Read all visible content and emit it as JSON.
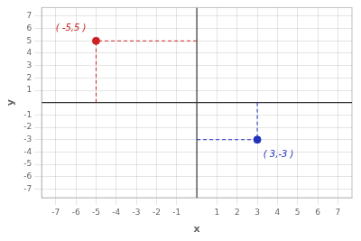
{
  "chart_data": {
    "type": "scatter",
    "xlabel": "x",
    "ylabel": "y",
    "xlim": [
      -7.7,
      7.7
    ],
    "ylim": [
      -7.7,
      7.7
    ],
    "xticks": [
      -7,
      -6,
      -5,
      -4,
      -3,
      -2,
      -1,
      1,
      2,
      3,
      4,
      5,
      6,
      7
    ],
    "yticks": [
      -7,
      -6,
      -5,
      -4,
      -3,
      -2,
      -1,
      1,
      2,
      3,
      4,
      5,
      6,
      7
    ],
    "grid": true,
    "series": [
      {
        "color": "#cc2222",
        "x": [
          -5
        ],
        "values": [
          5
        ]
      },
      {
        "color": "#2233bb",
        "x": [
          3
        ],
        "values": [
          -3
        ]
      }
    ],
    "annotations": [
      {
        "text": "( -5,5 )",
        "x": -7.0,
        "y": 6.0,
        "color": "#cc2222"
      },
      {
        "text": "( 3,-3 )",
        "x": 3.3,
        "y": -4.2,
        "color": "#2233bb"
      }
    ]
  }
}
